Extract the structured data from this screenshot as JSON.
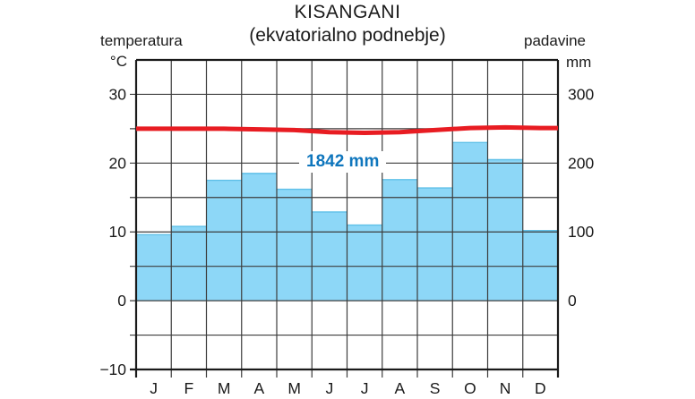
{
  "header": {
    "title": "KISANGANI",
    "subtitle": "(ekvatorialno podnebje)"
  },
  "left_axis": {
    "caption": "temperatura",
    "unit": "°C",
    "tick_labels": [
      "30",
      "20",
      "10",
      "0",
      "−10"
    ],
    "tick_values_c": [
      30,
      20,
      10,
      0,
      -10
    ]
  },
  "right_axis": {
    "caption": "padavine",
    "unit": "mm",
    "tick_labels": [
      "300",
      "200",
      "100",
      "0"
    ],
    "tick_values_mm": [
      300,
      200,
      100,
      0
    ]
  },
  "annotation": {
    "text": "1842 mm"
  },
  "chart_data": {
    "type": "bar",
    "title": "KISANGANI (ekvatorialno podnebje)",
    "categories": [
      "J",
      "F",
      "M",
      "A",
      "M",
      "J",
      "J",
      "A",
      "S",
      "O",
      "N",
      "D"
    ],
    "series": [
      {
        "name": "padavine",
        "type": "bar",
        "unit": "mm",
        "values": [
          96,
          108,
          175,
          185,
          162,
          129,
          110,
          176,
          164,
          230,
          205,
          102
        ],
        "annual_total_mm": 1842,
        "color": "#8dd7f7"
      },
      {
        "name": "temperatura",
        "type": "line",
        "unit": "°C",
        "values": [
          25.0,
          25.0,
          25.0,
          24.9,
          24.8,
          24.5,
          24.4,
          24.5,
          24.8,
          25.1,
          25.2,
          25.1
        ],
        "color": "#e81c22"
      }
    ],
    "xlabel": "",
    "ylabel_left": "temperatura (°C)",
    "ylabel_right": "padavine (mm)",
    "left_axis_range_c": [
      -10,
      35
    ],
    "right_axis_range_mm": [
      -100,
      350
    ],
    "grid": true,
    "gridline_step_mm": 50,
    "legend_position": "none",
    "colors": {
      "bar_fill": "#8dd7f7",
      "bar_top_edge": "#5fc0e8",
      "temperature_line": "#e81c22",
      "gridline": "#3d3d3d",
      "border": "#1a1a1a",
      "text": "#1a1a1a",
      "annotation_text": "#0f76bd"
    }
  }
}
